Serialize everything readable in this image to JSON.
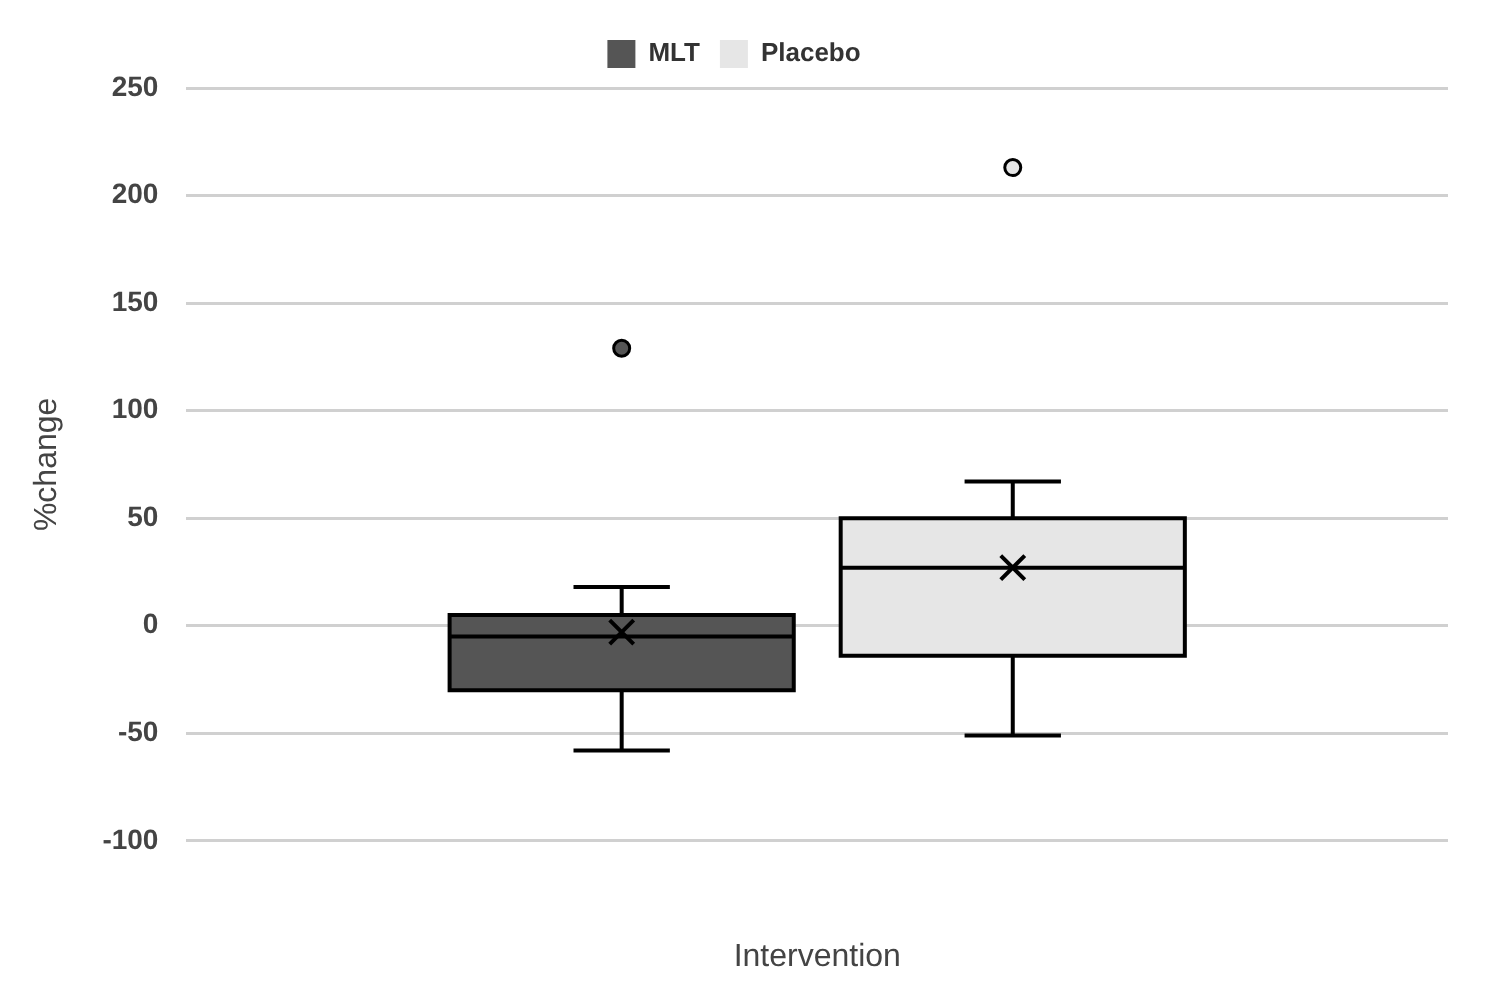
{
  "chart_data": {
    "type": "box",
    "xlabel": "Intervention",
    "ylabel": "%change",
    "categories": [
      null
    ],
    "series": [
      {
        "name": "MLT",
        "color": "#555555",
        "boxes": [
          {
            "low": -58,
            "q1": -30,
            "median": -5,
            "q3": 5,
            "high": 18,
            "mean": -3,
            "outliers": [
              129
            ]
          }
        ]
      },
      {
        "name": "Placebo",
        "color": "#e6e6e6",
        "boxes": [
          {
            "low": -51,
            "q1": -14,
            "median": 27,
            "q3": 50,
            "high": 67,
            "mean": 27,
            "outliers": [
              213
            ]
          }
        ]
      }
    ],
    "ylim": [
      -100,
      250
    ],
    "yticks": [
      -100,
      -50,
      0,
      50,
      100,
      150,
      200,
      250
    ],
    "grid": "y",
    "legend": "top"
  }
}
